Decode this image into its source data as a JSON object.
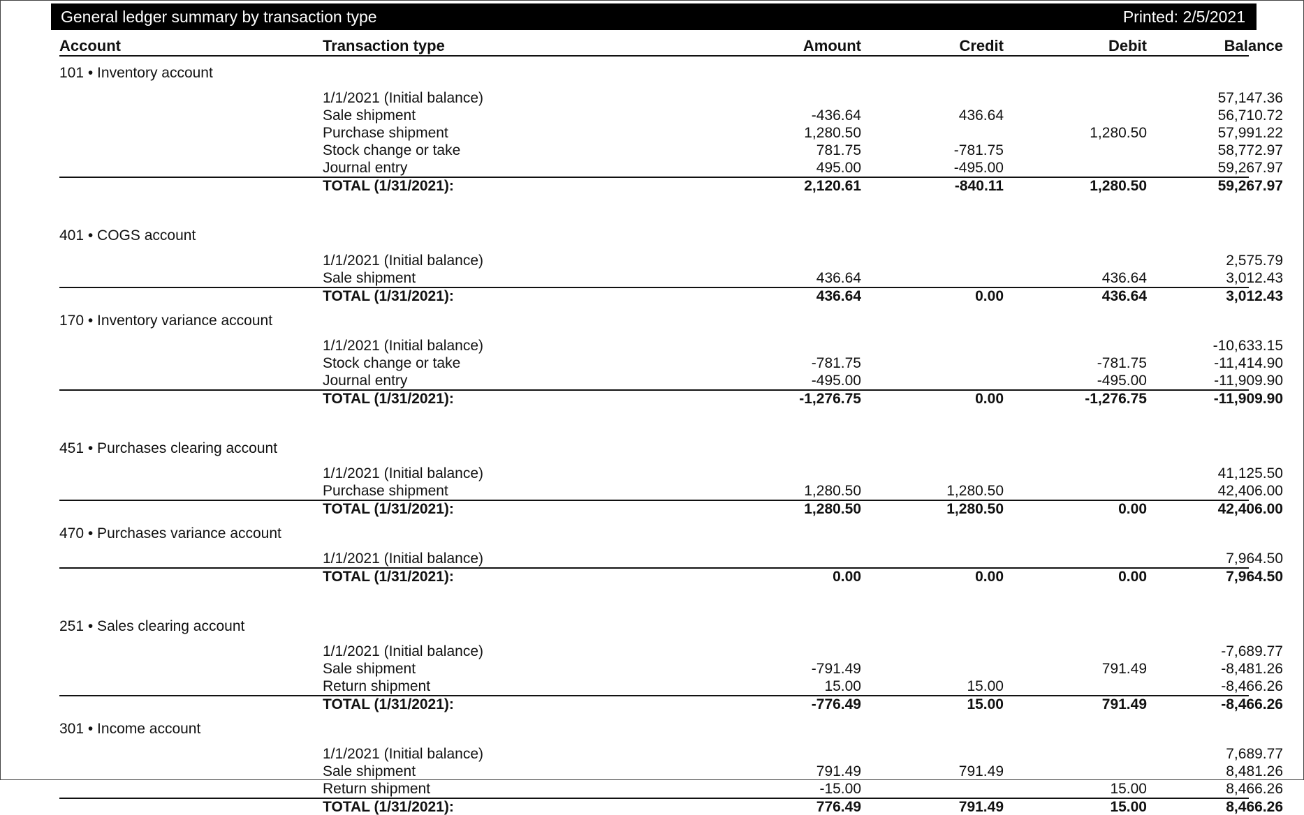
{
  "report": {
    "title": "General ledger summary by transaction type",
    "printed": "Printed: 2/5/2021"
  },
  "columns": {
    "account": "Account",
    "transaction_type": "Transaction type",
    "amount": "Amount",
    "credit": "Credit",
    "debit": "Debit",
    "balance": "Balance"
  },
  "accounts": [
    {
      "name": "101 • Inventory account",
      "rows": [
        {
          "type": "1/1/2021 (Initial balance)",
          "amount": "",
          "credit": "",
          "debit": "",
          "balance": "57,147.36"
        },
        {
          "type": "Sale shipment",
          "amount": "-436.64",
          "credit": "436.64",
          "debit": "",
          "balance": "56,710.72"
        },
        {
          "type": "Purchase shipment",
          "amount": "1,280.50",
          "credit": "",
          "debit": "1,280.50",
          "balance": "57,991.22"
        },
        {
          "type": "Stock change or take",
          "amount": "781.75",
          "credit": "-781.75",
          "debit": "",
          "balance": "58,772.97"
        },
        {
          "type": "Journal entry",
          "amount": "495.00",
          "credit": "-495.00",
          "debit": "",
          "balance": "59,267.97"
        }
      ],
      "total": {
        "label": "TOTAL (1/31/2021):",
        "amount": "2,120.61",
        "credit": "-840.11",
        "debit": "1,280.50",
        "balance": "59,267.97"
      }
    },
    {
      "name": "401 • COGS account",
      "rows": [
        {
          "type": "1/1/2021 (Initial balance)",
          "amount": "",
          "credit": "",
          "debit": "",
          "balance": "2,575.79"
        },
        {
          "type": "Sale shipment",
          "amount": "436.64",
          "credit": "",
          "debit": "436.64",
          "balance": "3,012.43"
        }
      ],
      "total": {
        "label": "TOTAL (1/31/2021):",
        "amount": "436.64",
        "credit": "0.00",
        "debit": "436.64",
        "balance": "3,012.43"
      }
    },
    {
      "name": "170 • Inventory variance account",
      "rows": [
        {
          "type": "1/1/2021 (Initial balance)",
          "amount": "",
          "credit": "",
          "debit": "",
          "balance": "-10,633.15"
        },
        {
          "type": "Stock change or take",
          "amount": "-781.75",
          "credit": "",
          "debit": "-781.75",
          "balance": "-11,414.90"
        },
        {
          "type": "Journal entry",
          "amount": "-495.00",
          "credit": "",
          "debit": "-495.00",
          "balance": "-11,909.90"
        }
      ],
      "total": {
        "label": "TOTAL (1/31/2021):",
        "amount": "-1,276.75",
        "credit": "0.00",
        "debit": "-1,276.75",
        "balance": "-11,909.90"
      }
    },
    {
      "name": "451 • Purchases clearing account",
      "rows": [
        {
          "type": "1/1/2021 (Initial balance)",
          "amount": "",
          "credit": "",
          "debit": "",
          "balance": "41,125.50"
        },
        {
          "type": "Purchase shipment",
          "amount": "1,280.50",
          "credit": "1,280.50",
          "debit": "",
          "balance": "42,406.00"
        }
      ],
      "total": {
        "label": "TOTAL (1/31/2021):",
        "amount": "1,280.50",
        "credit": "1,280.50",
        "debit": "0.00",
        "balance": "42,406.00"
      }
    },
    {
      "name": "470 • Purchases variance account",
      "rows": [
        {
          "type": "1/1/2021 (Initial balance)",
          "amount": "",
          "credit": "",
          "debit": "",
          "balance": "7,964.50"
        }
      ],
      "total": {
        "label": "TOTAL (1/31/2021):",
        "amount": "0.00",
        "credit": "0.00",
        "debit": "0.00",
        "balance": "7,964.50"
      }
    },
    {
      "name": "251 • Sales clearing account",
      "rows": [
        {
          "type": "1/1/2021 (Initial balance)",
          "amount": "",
          "credit": "",
          "debit": "",
          "balance": "-7,689.77"
        },
        {
          "type": "Sale shipment",
          "amount": "-791.49",
          "credit": "",
          "debit": "791.49",
          "balance": "-8,481.26"
        },
        {
          "type": "Return shipment",
          "amount": "15.00",
          "credit": "15.00",
          "debit": "",
          "balance": "-8,466.26"
        }
      ],
      "total": {
        "label": "TOTAL (1/31/2021):",
        "amount": "-776.49",
        "credit": "15.00",
        "debit": "791.49",
        "balance": "-8,466.26"
      }
    },
    {
      "name": "301 • Income account",
      "rows": [
        {
          "type": "1/1/2021 (Initial balance)",
          "amount": "",
          "credit": "",
          "debit": "",
          "balance": "7,689.77"
        },
        {
          "type": "Sale shipment",
          "amount": "791.49",
          "credit": "791.49",
          "debit": "",
          "balance": "8,481.26"
        },
        {
          "type": "Return shipment",
          "amount": "-15.00",
          "credit": "",
          "debit": "15.00",
          "balance": "8,466.26"
        }
      ],
      "total": {
        "label": "TOTAL (1/31/2021):",
        "amount": "776.49",
        "credit": "791.49",
        "debit": "15.00",
        "balance": "8,466.26"
      }
    }
  ]
}
